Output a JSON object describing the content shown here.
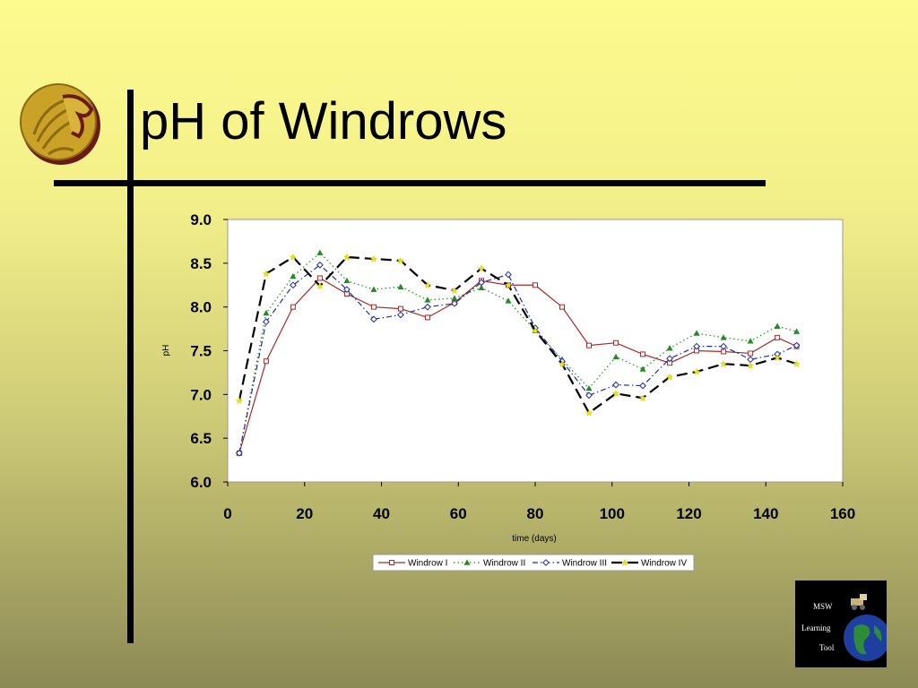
{
  "slide": {
    "title": "pH of Windrows"
  },
  "badge": {
    "line1": "MSW",
    "line2": "Learning",
    "line3": "Tool"
  },
  "icons": {
    "logo": "pegasus-logo-icon",
    "badge_globe": "globe-icon",
    "badge_truck": "truck-icon"
  },
  "chart_data": {
    "type": "line",
    "title": "",
    "xlabel": "time (days)",
    "ylabel": "pH",
    "xlim": [
      0,
      160
    ],
    "ylim": [
      6.0,
      9.0
    ],
    "x_ticks": [
      0,
      20,
      40,
      60,
      80,
      100,
      120,
      140,
      160
    ],
    "x_tick_labels": [
      "0",
      "20",
      "40",
      "60",
      "80",
      "100",
      "120",
      "140",
      "160"
    ],
    "y_ticks": [
      6.0,
      6.5,
      7.0,
      7.5,
      8.0,
      8.5,
      9.0
    ],
    "y_tick_labels": [
      "6.0",
      "6.5",
      "7.0",
      "7.5",
      "8.0",
      "8.5",
      "9.0"
    ],
    "grid": false,
    "legend_position": "bottom",
    "series": [
      {
        "name": "Windrow I",
        "color": "#A52A2A",
        "marker": "square",
        "dash": "solid",
        "x": [
          3,
          10,
          17,
          24,
          31,
          38,
          45,
          52,
          59,
          66,
          73,
          80,
          87,
          94,
          101,
          108,
          115,
          122,
          129,
          136,
          143,
          148
        ],
        "y": [
          6.33,
          7.38,
          8.0,
          8.33,
          8.15,
          8.0,
          7.98,
          7.88,
          8.05,
          8.3,
          8.25,
          8.25,
          8.0,
          7.56,
          7.59,
          7.46,
          7.36,
          7.5,
          7.49,
          7.47,
          7.65,
          7.55
        ]
      },
      {
        "name": "Windrow II",
        "color": "#228B22",
        "marker": "triangle",
        "dash": "dotted",
        "x": [
          3,
          10,
          17,
          24,
          31,
          38,
          45,
          52,
          59,
          66,
          73,
          80,
          87,
          94,
          101,
          108,
          115,
          122,
          129,
          136,
          143,
          148
        ],
        "y": [
          6.33,
          7.93,
          8.35,
          8.62,
          8.3,
          8.2,
          8.23,
          8.08,
          8.1,
          8.22,
          8.07,
          7.73,
          7.4,
          7.07,
          7.43,
          7.29,
          7.53,
          7.7,
          7.65,
          7.61,
          7.78,
          7.72
        ]
      },
      {
        "name": "Windrow III",
        "color": "#1F2FA0",
        "marker": "diamond",
        "dash": "dashdot",
        "x": [
          3,
          10,
          17,
          24,
          31,
          38,
          45,
          52,
          59,
          66,
          73,
          80,
          87,
          94,
          101,
          108,
          115,
          122,
          129,
          136,
          143,
          148
        ],
        "y": [
          6.33,
          7.83,
          8.25,
          8.48,
          8.2,
          7.86,
          7.91,
          8.0,
          8.04,
          8.28,
          8.37,
          7.76,
          7.38,
          6.99,
          7.11,
          7.1,
          7.41,
          7.55,
          7.55,
          7.4,
          7.46,
          7.56
        ]
      },
      {
        "name": "Windrow IV",
        "color": "#000000",
        "marker": "star",
        "dash": "longdash",
        "x": [
          3,
          10,
          17,
          24,
          31,
          38,
          45,
          52,
          59,
          66,
          73,
          80,
          87,
          94,
          101,
          108,
          115,
          122,
          129,
          136,
          143,
          148
        ],
        "y": [
          6.93,
          8.38,
          8.57,
          8.24,
          8.57,
          8.55,
          8.53,
          8.25,
          8.19,
          8.44,
          8.25,
          7.73,
          7.35,
          6.79,
          7.01,
          6.96,
          7.2,
          7.26,
          7.35,
          7.33,
          7.42,
          7.35
        ]
      }
    ]
  }
}
